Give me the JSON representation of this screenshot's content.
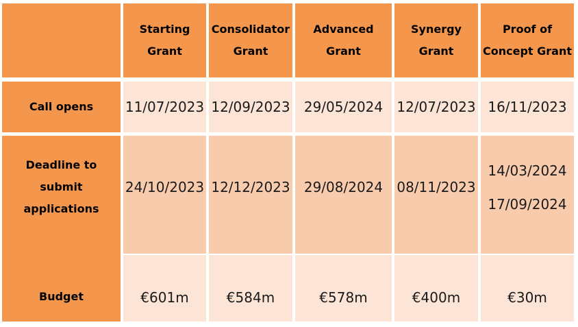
{
  "colors": {
    "header_bg": "#F4974D",
    "light_cell_bg": "#FCE4D6",
    "medium_cell_bg": "#F8CBAD",
    "header_text": "#000000",
    "data_text": "#1A1A1A",
    "page_bg": "#FFFFFF"
  },
  "row_headers": {
    "call_opens": "Call opens",
    "deadline": "Deadline to\nsubmit\napplications",
    "budget": "Budget"
  },
  "grants": [
    {
      "name": "Starting\nGrant",
      "call_opens": "11/07/2023",
      "deadlines": [
        "24/10/2023"
      ],
      "budget": "€601m"
    },
    {
      "name": "Consolidator\nGrant",
      "call_opens": "12/09/2023",
      "deadlines": [
        "12/12/2023"
      ],
      "budget": "€584m"
    },
    {
      "name": "Advanced\nGrant",
      "call_opens": "29/05/2024",
      "deadlines": [
        "29/08/2024"
      ],
      "budget": "€578m"
    },
    {
      "name": "Synergy\nGrant",
      "call_opens": "12/07/2023",
      "deadlines": [
        "08/11/2023"
      ],
      "budget": "€400m"
    },
    {
      "name": "Proof of\nConcept Grant",
      "call_opens": "16/11/2023",
      "deadlines": [
        "14/03/2024",
        "17/09/2024"
      ],
      "budget": "€30m"
    }
  ],
  "chart_data": {
    "type": "table",
    "columns": [
      "",
      "Starting Grant",
      "Consolidator Grant",
      "Advanced Grant",
      "Synergy Grant",
      "Proof of Concept Grant"
    ],
    "rows": [
      [
        "Call opens",
        "11/07/2023",
        "12/09/2023",
        "29/05/2024",
        "12/07/2023",
        "16/11/2023"
      ],
      [
        "Deadline to submit applications",
        "24/10/2023",
        "12/12/2023",
        "29/08/2024",
        "08/11/2023",
        "14/03/2024, 17/09/2024"
      ],
      [
        "Budget",
        "€601m",
        "€584m",
        "€578m",
        "€400m",
        "€30m"
      ]
    ]
  }
}
